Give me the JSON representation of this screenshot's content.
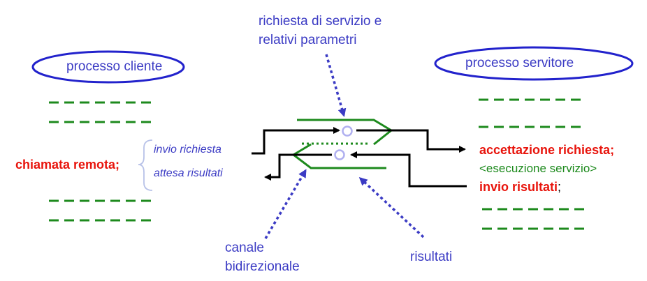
{
  "colors": {
    "blue": "#3b3bc4",
    "green": "#1d8a1d",
    "red": "#e8140c",
    "black": "#000000",
    "ellipse": "#2222cc",
    "brace": "#b8c2e8"
  },
  "client": {
    "title": "processo cliente",
    "call_label": "chiamata remota;",
    "send_request": "invio richiesta",
    "await_results": "attesa risultati"
  },
  "server": {
    "title": "processo servitore",
    "accept_request": "accettazione richiesta;",
    "execute_service": "<esecuzione servizio>",
    "send_results_bold": "invio risultati",
    "send_results_semicolon": ";"
  },
  "annotations": {
    "request_line1": "richiesta di servizio e",
    "request_line2": "relativi parametri",
    "channel_line1": "canale",
    "channel_line2": "bidirezionale",
    "results": "risultati"
  }
}
